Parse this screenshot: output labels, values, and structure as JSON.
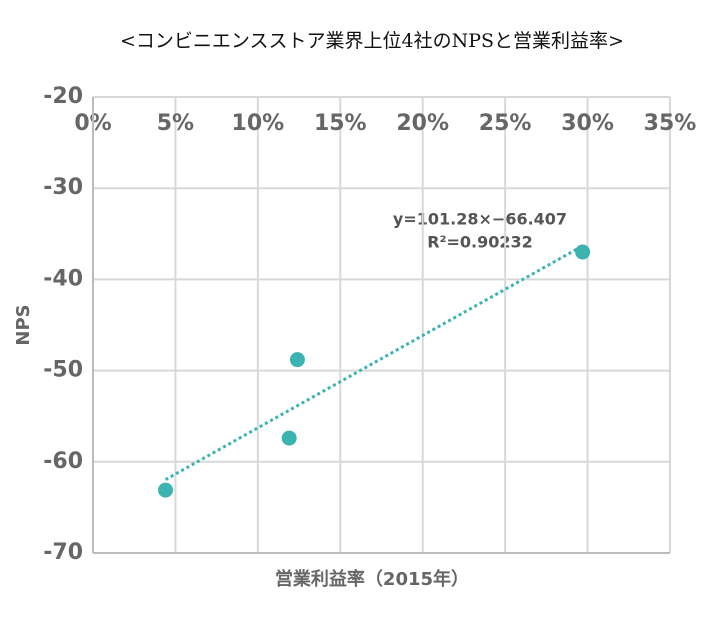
{
  "chart_data": {
    "type": "scatter",
    "title": "<コンビニエンスストア業界上位4社のNPSと営業利益率>",
    "x_label": "営業利益率（2015年）",
    "y_label": "NPS",
    "series": [
      {
        "color": "#3bb3b0",
        "x": [
          0.044,
          0.119,
          0.124,
          0.297
        ],
        "values": [
          -63.1,
          -57.4,
          -48.8,
          -37.0
        ]
      }
    ],
    "xlim": [
      0,
      0.35
    ],
    "xticks": [
      {
        "value": 0,
        "label": "0%"
      },
      {
        "value": 0.05,
        "label": "5%"
      },
      {
        "value": 0.1,
        "label": "10%"
      },
      {
        "value": 0.15,
        "label": "15%"
      },
      {
        "value": 0.2,
        "label": "20%"
      },
      {
        "value": 0.25,
        "label": "25%"
      },
      {
        "value": 0.3,
        "label": "30%"
      },
      {
        "value": 0.35,
        "label": "35%"
      }
    ],
    "ylim": [
      -70,
      -20
    ],
    "yticks": [
      -70,
      -60,
      -50,
      -40,
      -30,
      -20
    ],
    "grid": true,
    "trendline": {
      "slope": 101.28,
      "intercept": -66.407,
      "equation": "y=101.28×−66.407",
      "r2": "R²=0.90232"
    }
  }
}
